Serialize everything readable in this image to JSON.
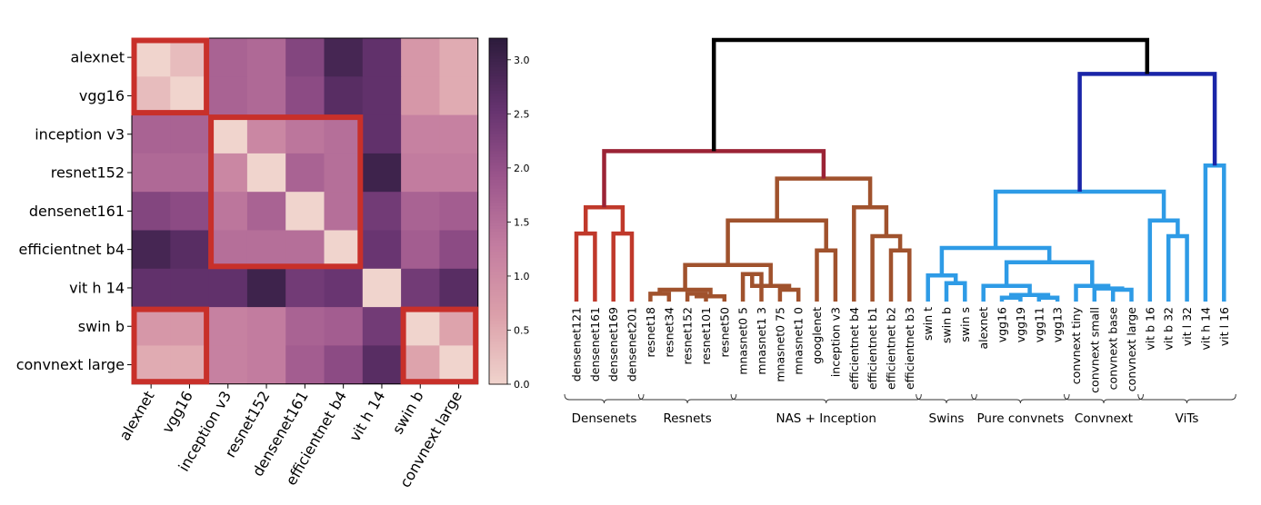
{
  "chart_data": [
    {
      "type": "heatmap",
      "title": "",
      "rows": [
        "alexnet",
        "vgg16",
        "inception v3",
        "resnet152",
        "densenet161",
        "efficientnet b4",
        "vit h 14",
        "swin b",
        "convnext large"
      ],
      "cols": [
        "alexnet",
        "vgg16",
        "inception v3",
        "resnet152",
        "densenet161",
        "efficientnet b4",
        "vit h 14",
        "swin b",
        "convnext large"
      ],
      "values": [
        [
          0.0,
          0.3,
          1.7,
          1.6,
          2.2,
          2.9,
          2.6,
          0.8,
          0.5
        ],
        [
          0.3,
          0.0,
          1.7,
          1.6,
          2.1,
          2.7,
          2.6,
          0.8,
          0.5
        ],
        [
          1.7,
          1.7,
          0.0,
          1.1,
          1.4,
          1.5,
          2.6,
          1.2,
          1.2
        ],
        [
          1.6,
          1.6,
          1.1,
          0.0,
          1.7,
          1.5,
          3.0,
          1.3,
          1.3
        ],
        [
          2.2,
          2.1,
          1.4,
          1.7,
          0.0,
          1.5,
          2.4,
          1.7,
          1.8
        ],
        [
          2.9,
          2.7,
          1.5,
          1.5,
          1.5,
          0.0,
          2.5,
          1.8,
          2.1
        ],
        [
          2.6,
          2.6,
          2.6,
          3.0,
          2.4,
          2.5,
          0.0,
          2.4,
          2.7
        ],
        [
          0.8,
          0.8,
          1.2,
          1.3,
          1.7,
          1.8,
          2.4,
          0.0,
          0.6
        ],
        [
          0.5,
          0.5,
          1.2,
          1.3,
          1.8,
          2.1,
          2.7,
          0.6,
          0.0
        ]
      ],
      "vmin": 0.0,
      "vmax": 3.2,
      "colorbar_ticks": [
        "0.0",
        "0.5",
        "1.0",
        "1.5",
        "2.0",
        "2.5",
        "3.0"
      ],
      "highlight_blocks": [
        {
          "rows": [
            0,
            1
          ],
          "cols": [
            0,
            1
          ]
        },
        {
          "rows": [
            2,
            5
          ],
          "cols": [
            2,
            5
          ]
        },
        {
          "rows": [
            7,
            8
          ],
          "cols": [
            0,
            1
          ]
        },
        {
          "rows": [
            7,
            8
          ],
          "cols": [
            7,
            8
          ]
        }
      ],
      "highlight_color": "#c8302a"
    },
    {
      "type": "dendrogram",
      "title": "",
      "leaves": [
        "densenet121",
        "densenet161",
        "densenet169",
        "densenet201",
        "resnet18",
        "resnet34",
        "resnet152",
        "resnet101",
        "resnet50",
        "mnasnet0 5",
        "mnasnet1 3",
        "mnasnet0 75",
        "mnasnet1 0",
        "googlenet",
        "inception v3",
        "efficientnet b4",
        "efficientnet b1",
        "efficientnet b2",
        "efficientnet b3",
        "swin t",
        "swin b",
        "swin s",
        "alexnet",
        "vgg16",
        "vgg19",
        "vgg11",
        "vgg13",
        "convnext tiny",
        "convnext small",
        "convnext base",
        "convnext large",
        "vit b 16",
        "vit b 32",
        "vit l 32",
        "vit h 14",
        "vit l 16"
      ],
      "merges": [
        {
          "a": 0,
          "b": 1,
          "h": 0.52,
          "c": "#c0392b"
        },
        {
          "a": 2,
          "b": 3,
          "h": 0.52,
          "c": "#c0392b"
        },
        {
          "a": 36,
          "b": 37,
          "h": 0.72,
          "c": "#c0392b"
        },
        {
          "a": 4,
          "b": 5,
          "h": 0.06,
          "c": "#a0522d"
        },
        {
          "a": 6,
          "b": 7,
          "h": 0.06,
          "c": "#a0522d"
        },
        {
          "a": 40,
          "b": 8,
          "h": 0.04,
          "c": "#a0522d"
        },
        {
          "a": 41,
          "b": 39,
          "h": 0.09,
          "c": "#a0522d"
        },
        {
          "a": 9,
          "b": 10,
          "h": 0.21,
          "c": "#a0522d"
        },
        {
          "a": 11,
          "b": 12,
          "h": 0.09,
          "c": "#a0522d"
        },
        {
          "a": 43,
          "b": 44,
          "h": 0.12,
          "c": "#a0522d"
        },
        {
          "a": 42,
          "b": 45,
          "h": 0.28,
          "c": "#a0522d"
        },
        {
          "a": 13,
          "b": 14,
          "h": 0.39,
          "c": "#a0522d"
        },
        {
          "a": 46,
          "b": 47,
          "h": 0.62,
          "c": "#a0522d"
        },
        {
          "a": 17,
          "b": 18,
          "h": 0.39,
          "c": "#a0522d"
        },
        {
          "a": 16,
          "b": 49,
          "h": 0.5,
          "c": "#a0522d"
        },
        {
          "a": 15,
          "b": 50,
          "h": 0.72,
          "c": "#a0522d"
        },
        {
          "a": 48,
          "b": 51,
          "h": 0.94,
          "c": "#a0522d"
        },
        {
          "a": 38,
          "b": 52,
          "h": 1.15,
          "c": "#9b2335"
        },
        {
          "a": 20,
          "b": 21,
          "h": 0.14,
          "c": "#2e9be6"
        },
        {
          "a": 19,
          "b": 54,
          "h": 0.2,
          "c": "#2e9be6"
        },
        {
          "a": 23,
          "b": 24,
          "h": 0.03,
          "c": "#2e9be6"
        },
        {
          "a": 25,
          "b": 26,
          "h": 0.03,
          "c": "#2e9be6"
        },
        {
          "a": 56,
          "b": 57,
          "h": 0.05,
          "c": "#2e9be6"
        },
        {
          "a": 22,
          "b": 58,
          "h": 0.12,
          "c": "#2e9be6"
        },
        {
          "a": 29,
          "b": 30,
          "h": 0.09,
          "c": "#2e9be6"
        },
        {
          "a": 28,
          "b": 60,
          "h": 0.1,
          "c": "#2e9be6"
        },
        {
          "a": 27,
          "b": 61,
          "h": 0.12,
          "c": "#2e9be6"
        },
        {
          "a": 59,
          "b": 62,
          "h": 0.3,
          "c": "#2e9be6"
        },
        {
          "a": 55,
          "b": 63,
          "h": 0.41,
          "c": "#2e9be6"
        },
        {
          "a": 32,
          "b": 33,
          "h": 0.5,
          "c": "#2e9be6"
        },
        {
          "a": 31,
          "b": 65,
          "h": 0.62,
          "c": "#2e9be6"
        },
        {
          "a": 64,
          "b": 66,
          "h": 0.84,
          "c": "#2e9be6"
        },
        {
          "a": 34,
          "b": 35,
          "h": 1.04,
          "c": "#2e9be6"
        },
        {
          "a": 67,
          "b": 68,
          "h": 1.74,
          "c": "#1a25a8"
        },
        {
          "a": 53,
          "b": 69,
          "h": 2.0,
          "c": "#000000"
        }
      ],
      "max_height": 2.0,
      "groups": [
        {
          "label": "Densenets",
          "first": 0,
          "last": 3
        },
        {
          "label": "Resnets",
          "first": 4,
          "last": 8
        },
        {
          "label": "NAS + Inception",
          "first": 9,
          "last": 18
        },
        {
          "label": "Swins",
          "first": 19,
          "last": 21
        },
        {
          "label": "Pure convnets",
          "first": 22,
          "last": 26
        },
        {
          "label": "Convnext",
          "first": 27,
          "last": 30
        },
        {
          "label": "ViTs",
          "first": 31,
          "last": 35
        }
      ]
    }
  ]
}
